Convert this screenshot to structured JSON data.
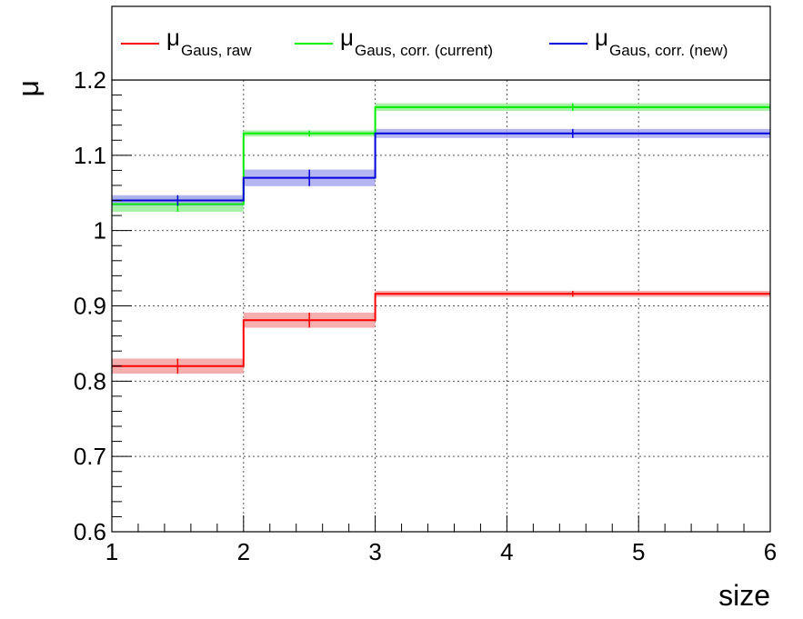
{
  "chart_data": {
    "type": "step",
    "xlabel": "size",
    "ylabel": "μ",
    "xlim": [
      1,
      6
    ],
    "ylim": [
      0.6,
      1.2
    ],
    "x_ticks": [
      "1",
      "2",
      "3",
      "4",
      "5",
      "6"
    ],
    "y_ticks": [
      "0.6",
      "0.7",
      "0.8",
      "0.9",
      "1",
      "1.1",
      "1.2"
    ],
    "grid": true,
    "legend_position": "top",
    "bins": [
      [
        1,
        2
      ],
      [
        2,
        3
      ],
      [
        3,
        6
      ]
    ],
    "series": [
      {
        "legend_symbol": "μ",
        "legend_subscript": "Gaus, raw",
        "color": "#ff0000",
        "band_color": "#f4a0a0",
        "values": [
          0.82,
          0.881,
          0.916
        ],
        "errors": [
          0.01,
          0.01,
          0.004
        ]
      },
      {
        "legend_symbol": "μ",
        "legend_subscript": "Gaus, corr. (current)",
        "color": "#00ee00",
        "band_color": "#9aee9a",
        "values": [
          1.035,
          1.129,
          1.164
        ],
        "errors": [
          0.01,
          0.004,
          0.005
        ]
      },
      {
        "legend_symbol": "μ",
        "legend_subscript": "Gaus, corr. (new)",
        "color": "#0000dd",
        "band_color": "#a8a8f0",
        "values": [
          1.04,
          1.07,
          1.129
        ],
        "errors": [
          0.007,
          0.011,
          0.006
        ]
      }
    ]
  }
}
